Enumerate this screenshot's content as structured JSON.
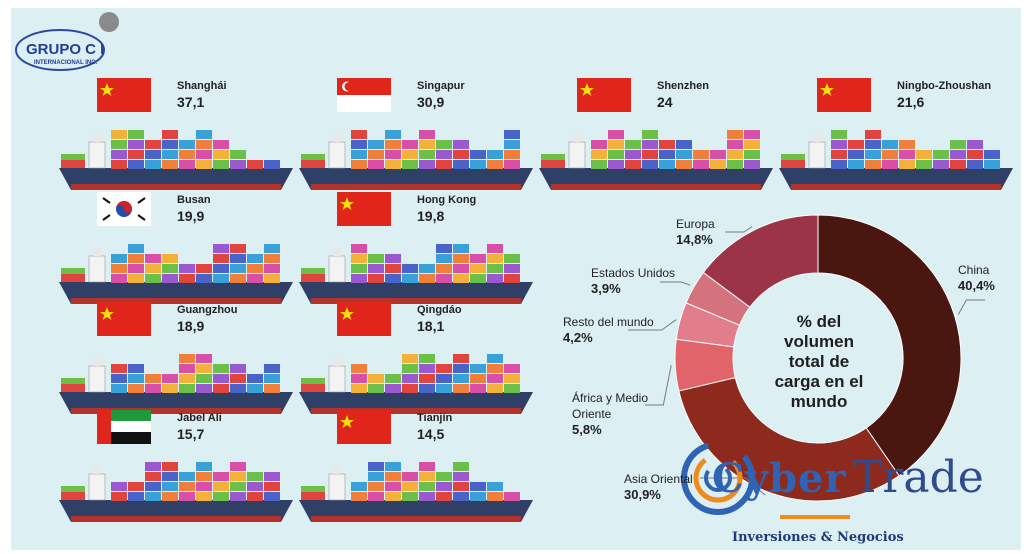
{
  "brand": {
    "logo_top": "GRUPO C I",
    "logo_bottom": "INTERNACIONAL INC.",
    "watermark_cyber": "Cyber",
    "watermark_trade": "Trade",
    "watermark_sub": "Inversiones & Negocios"
  },
  "ports": [
    {
      "name": "Shanghái",
      "value": "37,1",
      "flag": "china-flag"
    },
    {
      "name": "Singapur",
      "value": "30,9",
      "flag": "singapore-flag"
    },
    {
      "name": "Shenzhen",
      "value": "24",
      "flag": "china-flag"
    },
    {
      "name": "Ningbo-Zhoushan",
      "value": "21,6",
      "flag": "china-flag"
    },
    {
      "name": "Busan",
      "value": "19,9",
      "flag": "south-korea-flag"
    },
    {
      "name": "Hong Kong",
      "value": "19,8",
      "flag": "china-flag"
    },
    {
      "name": "Guangzhou",
      "value": "18,9",
      "flag": "china-flag"
    },
    {
      "name": "Qingdáo",
      "value": "18,1",
      "flag": "china-flag"
    },
    {
      "name": "Jabel Ali",
      "value": "15,7",
      "flag": "uae-flag"
    },
    {
      "name": "Tianjín",
      "value": "14,5",
      "flag": "china-flag"
    }
  ],
  "chart_data": {
    "type": "pie",
    "variant": "donut",
    "title": "% del volumen total de carga en el mundo",
    "center_lines": [
      "% del",
      "volumen",
      "total de",
      "carga en el",
      "mundo"
    ],
    "slices": [
      {
        "name": "China",
        "value": 40.4,
        "label": "40,4%",
        "color": "#4a1610"
      },
      {
        "name": "Asia Oriental",
        "value": 30.9,
        "label": "30,9%",
        "color": "#8e2a1d"
      },
      {
        "name_lines": [
          "África y Medio",
          "Oriente"
        ],
        "value": 5.8,
        "label": "5,8%",
        "color": "#e0646a"
      },
      {
        "name": "Resto del mundo",
        "value": 4.2,
        "label": "4,2%",
        "color": "#e27e8c"
      },
      {
        "name": "Estados Unidos",
        "value": 3.9,
        "label": "3,9%",
        "color": "#d4727e"
      },
      {
        "name": "Europa",
        "value": 14.8,
        "label": "14,8%",
        "color": "#9c3448"
      }
    ]
  }
}
